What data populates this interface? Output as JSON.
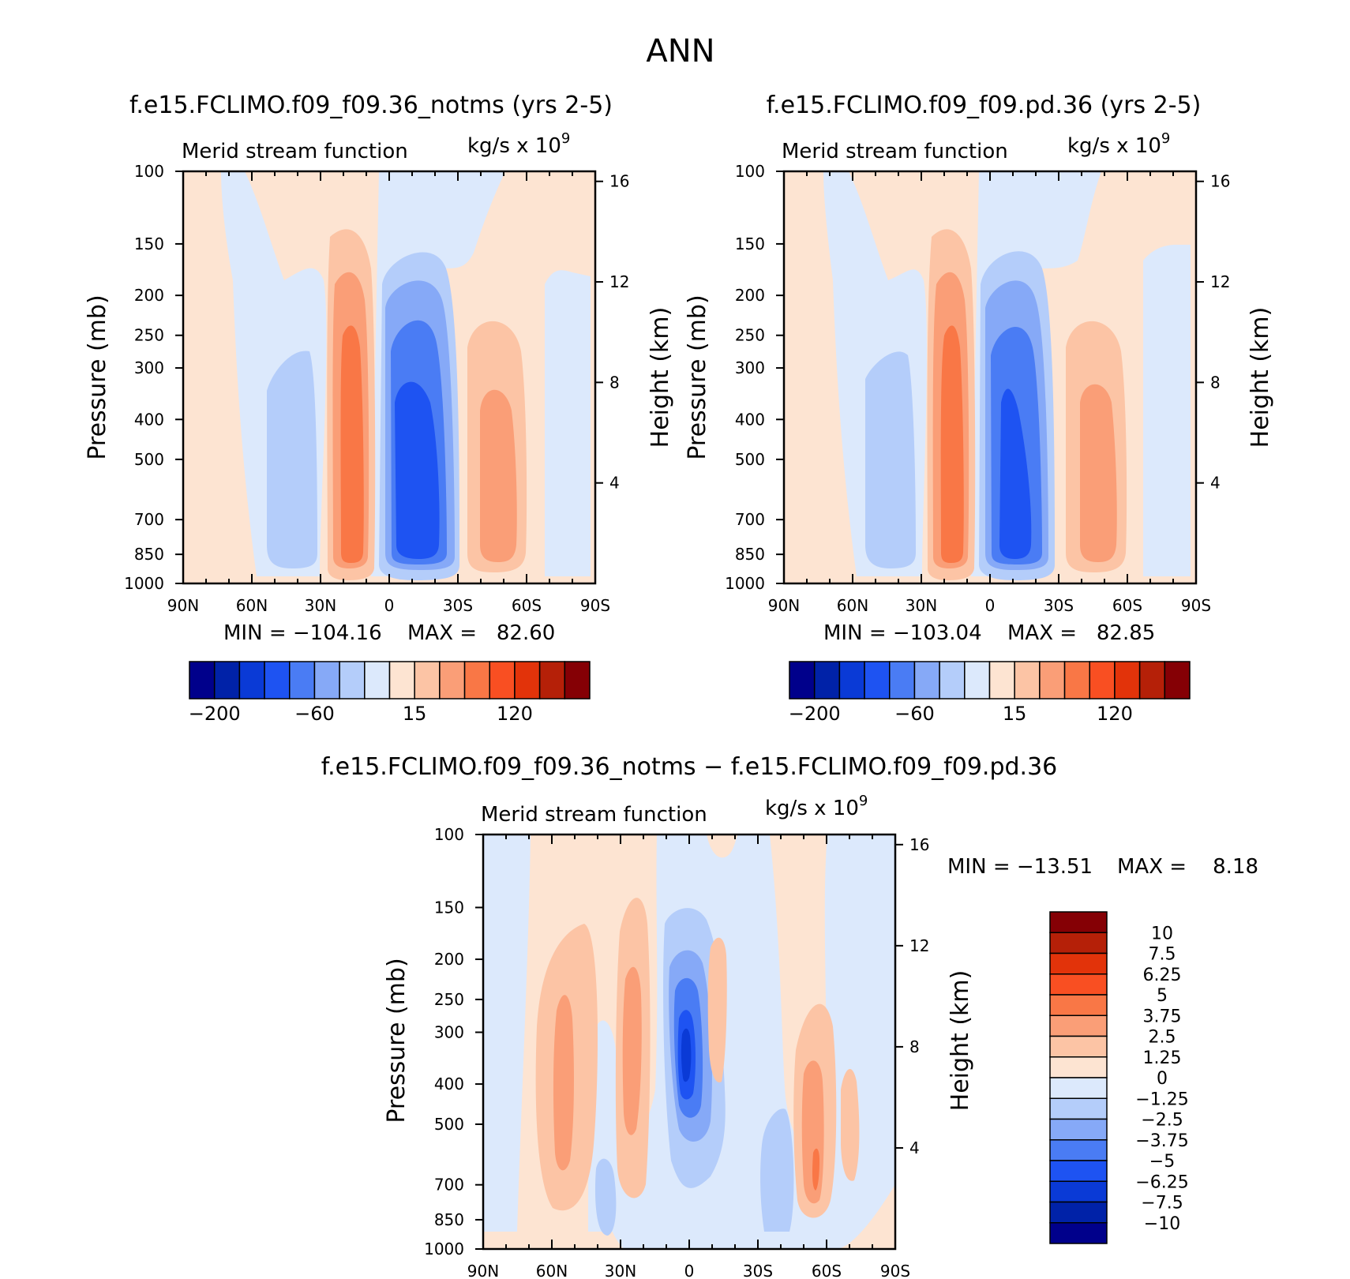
{
  "page_title": "ANN",
  "chart_data": [
    {
      "type": "heatmap",
      "title": "f.e15.FCLIMO.f09_f09.36_notms (yrs 2-5)",
      "left_label": "Merid stream function",
      "units": "kg/s x 10",
      "units_exp": "9",
      "ylabel": "Pressure (mb)",
      "y2label": "Height (km)",
      "x_ticks": [
        "90N",
        "60N",
        "30N",
        "0",
        "30S",
        "60S",
        "90S"
      ],
      "y_ticks": [
        "100",
        "150",
        "200",
        "250",
        "300",
        "400",
        "500",
        "700",
        "850",
        "1000"
      ],
      "y_tick_values": [
        100,
        150,
        200,
        250,
        300,
        400,
        500,
        700,
        850,
        1000
      ],
      "height_ticks": [
        "16",
        "12",
        "8",
        "4"
      ],
      "height_tick_values": [
        16,
        12,
        8,
        4
      ],
      "ylim": [
        1000,
        100
      ],
      "min_text": "MIN = −104.16",
      "max_text": "MAX =   82.60",
      "min": -104.16,
      "max": 82.6,
      "colorbar": {
        "labels": [
          "−200",
          "−60",
          "15",
          "120"
        ],
        "colors": [
          "#00008b",
          "#0022a8",
          "#0a3ad6",
          "#1e53f2",
          "#4a7cf4",
          "#86a9f7",
          "#b4cdfa",
          "#dce9fc",
          "#fde4d2",
          "#fcc4a5",
          "#fa9e77",
          "#f97746",
          "#f94f22",
          "#e2330a",
          "#b52008",
          "#850005"
        ]
      },
      "cells": [
        {
          "lat": -60,
          "p": 600,
          "v": -30
        },
        {
          "lat": -15,
          "p": 500,
          "v": 60
        },
        {
          "lat": 10,
          "p": 500,
          "v": -100
        },
        {
          "lat": 45,
          "p": 500,
          "v": 40
        }
      ]
    },
    {
      "type": "heatmap",
      "title": "f.e15.FCLIMO.f09_f09.pd.36 (yrs 2-5)",
      "left_label": "Merid stream function",
      "units": "kg/s x 10",
      "units_exp": "9",
      "ylabel": "Pressure (mb)",
      "y2label": "Height (km)",
      "x_ticks": [
        "90N",
        "60N",
        "30N",
        "0",
        "30S",
        "60S",
        "90S"
      ],
      "y_ticks": [
        "100",
        "150",
        "200",
        "250",
        "300",
        "400",
        "500",
        "700",
        "850",
        "1000"
      ],
      "y_tick_values": [
        100,
        150,
        200,
        250,
        300,
        400,
        500,
        700,
        850,
        1000
      ],
      "height_ticks": [
        "16",
        "12",
        "8",
        "4"
      ],
      "height_tick_values": [
        16,
        12,
        8,
        4
      ],
      "ylim": [
        1000,
        100
      ],
      "min_text": "MIN = −103.04",
      "max_text": "MAX =   82.85",
      "min": -103.04,
      "max": 82.85,
      "colorbar": {
        "labels": [
          "−200",
          "−60",
          "15",
          "120"
        ],
        "colors": [
          "#00008b",
          "#0022a8",
          "#0a3ad6",
          "#1e53f2",
          "#4a7cf4",
          "#86a9f7",
          "#b4cdfa",
          "#dce9fc",
          "#fde4d2",
          "#fcc4a5",
          "#fa9e77",
          "#f97746",
          "#f94f22",
          "#e2330a",
          "#b52008",
          "#850005"
        ]
      }
    },
    {
      "type": "heatmap",
      "title": "f.e15.FCLIMO.f09_f09.36_notms − f.e15.FCLIMO.f09_f09.pd.36",
      "left_label": "Merid stream function",
      "units": "kg/s x 10",
      "units_exp": "9",
      "ylabel": "Pressure (mb)",
      "y2label": "Height (km)",
      "x_ticks": [
        "90N",
        "60N",
        "30N",
        "0",
        "30S",
        "60S",
        "90S"
      ],
      "y_ticks": [
        "100",
        "150",
        "200",
        "250",
        "300",
        "400",
        "500",
        "700",
        "850",
        "1000"
      ],
      "y_tick_values": [
        100,
        150,
        200,
        250,
        300,
        400,
        500,
        700,
        850,
        1000
      ],
      "height_ticks": [
        "16",
        "12",
        "8",
        "4"
      ],
      "height_tick_values": [
        16,
        12,
        8,
        4
      ],
      "ylim": [
        1000,
        100
      ],
      "min_text": "MIN = −13.51",
      "max_text": "MAX =    8.18",
      "min": -13.51,
      "max": 8.18,
      "colorbar": {
        "labels": [
          "10",
          "7.5",
          "6.25",
          "5",
          "3.75",
          "2.5",
          "1.25",
          "0",
          "−1.25",
          "−2.5",
          "−3.75",
          "−5",
          "−6.25",
          "−7.5",
          "−10"
        ],
        "colors": [
          "#850005",
          "#b52008",
          "#e2330a",
          "#f94f22",
          "#f97746",
          "#fa9e77",
          "#fcc4a5",
          "#fde4d2",
          "#dce9fc",
          "#b4cdfa",
          "#86a9f7",
          "#4a7cf4",
          "#1e53f2",
          "#0a3ad6",
          "#0022a8",
          "#00008b"
        ]
      }
    }
  ]
}
